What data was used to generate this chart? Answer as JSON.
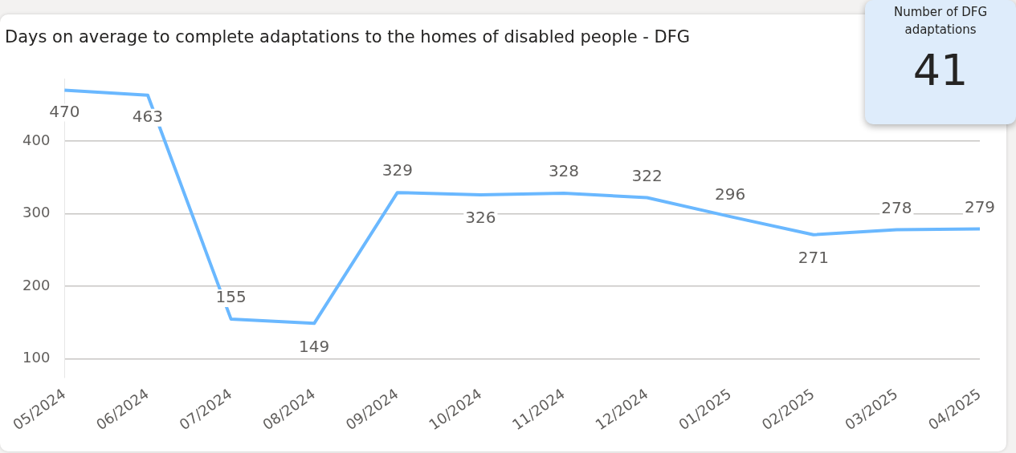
{
  "chart_data": [
    {
      "type": "line",
      "title": "Days on average to complete adaptations to the homes of disabled people - DFG",
      "categories": [
        "05/2024",
        "06/2024",
        "07/2024",
        "08/2024",
        "09/2024",
        "10/2024",
        "11/2024",
        "12/2024",
        "01/2025",
        "02/2025",
        "03/2025",
        "04/2025"
      ],
      "series": [
        {
          "color": "#6ab8ff",
          "values": [
            470,
            463,
            155,
            149,
            329,
            326,
            328,
            322,
            296,
            271,
            278,
            279
          ]
        }
      ],
      "ylim": [
        75,
        485
      ],
      "yticks": [
        100,
        200,
        300,
        400
      ],
      "grid": "y",
      "data_labels": true,
      "legend": false,
      "marker": "none"
    },
    {
      "type": "other",
      "title": "Number of DFG adaptations",
      "values": [
        41
      ],
      "data_labels": true
    }
  ]
}
